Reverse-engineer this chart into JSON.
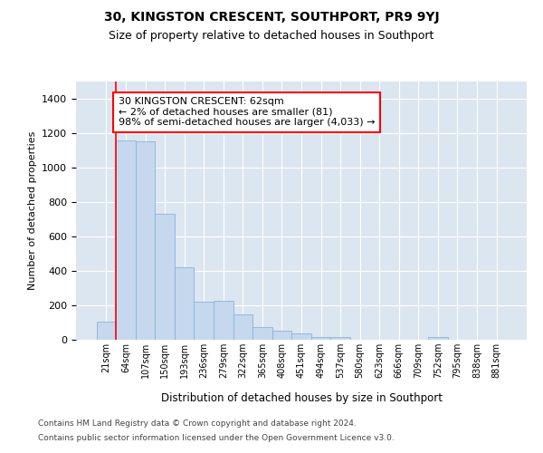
{
  "title": "30, KINGSTON CRESCENT, SOUTHPORT, PR9 9YJ",
  "subtitle": "Size of property relative to detached houses in Southport",
  "xlabel": "Distribution of detached houses by size in Southport",
  "ylabel": "Number of detached properties",
  "bar_color": "#c5d8ee",
  "bar_edge_color": "#8ab4d8",
  "background_color": "#dce6f1",
  "grid_color": "#ffffff",
  "annotation_text": "30 KINGSTON CRESCENT: 62sqm\n← 2% of detached houses are smaller (81)\n98% of semi-detached houses are larger (4,033) →",
  "footer_line1": "Contains HM Land Registry data © Crown copyright and database right 2024.",
  "footer_line2": "Contains public sector information licensed under the Open Government Licence v3.0.",
  "categories": [
    "21sqm",
    "64sqm",
    "107sqm",
    "150sqm",
    "193sqm",
    "236sqm",
    "279sqm",
    "322sqm",
    "365sqm",
    "408sqm",
    "451sqm",
    "494sqm",
    "537sqm",
    "580sqm",
    "623sqm",
    "666sqm",
    "709sqm",
    "752sqm",
    "795sqm",
    "838sqm",
    "881sqm"
  ],
  "values": [
    107,
    1160,
    1155,
    730,
    420,
    220,
    225,
    148,
    75,
    52,
    35,
    18,
    15,
    0,
    0,
    0,
    0,
    14,
    0,
    0,
    0
  ],
  "red_line_x": 0.5,
  "ylim": [
    0,
    1500
  ],
  "yticks": [
    0,
    200,
    400,
    600,
    800,
    1000,
    1200,
    1400
  ]
}
